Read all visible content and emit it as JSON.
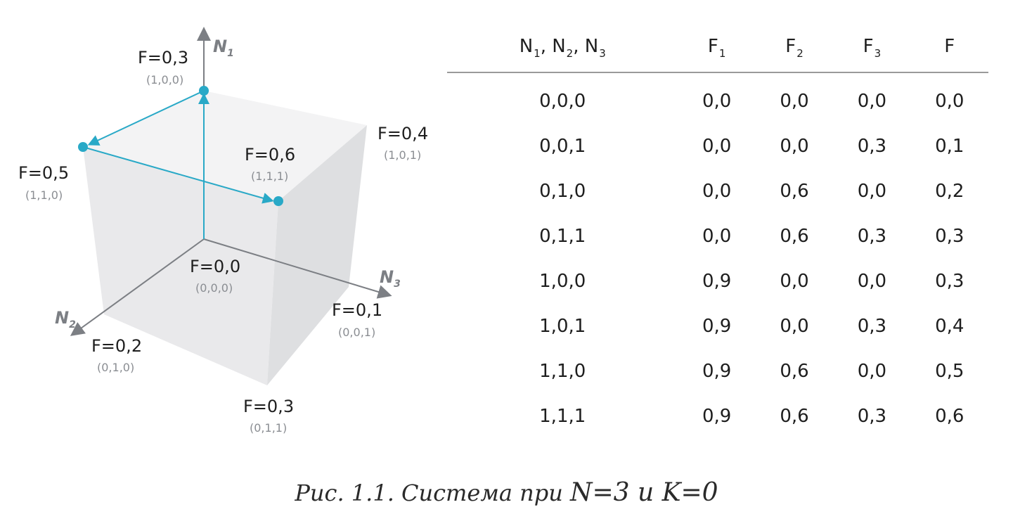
{
  "diagram": {
    "axes": {
      "n1": {
        "name": "N",
        "sub": "1"
      },
      "n2": {
        "name": "N",
        "sub": "2"
      },
      "n3": {
        "name": "N",
        "sub": "3"
      }
    },
    "vertices": {
      "v000": {
        "value": "F=0,0",
        "coords": "(0,0,0)"
      },
      "v001": {
        "value": "F=0,1",
        "coords": "(0,0,1)"
      },
      "v010": {
        "value": "F=0,2",
        "coords": "(0,1,0)"
      },
      "v011": {
        "value": "F=0,3",
        "coords": "(0,1,1)"
      },
      "v100": {
        "value": "F=0,3",
        "coords": "(1,0,0)"
      },
      "v101": {
        "value": "F=0,4",
        "coords": "(1,0,1)"
      },
      "v110": {
        "value": "F=0,5",
        "coords": "(1,1,0)"
      },
      "v111": {
        "value": "F=0,6",
        "coords": "(1,1,1)"
      }
    },
    "colors": {
      "path": "#29a9c7",
      "axis": "#7c7f84",
      "cube": "#e6e7e9"
    }
  },
  "table": {
    "headers": [
      {
        "parts": [
          {
            "t": "N",
            "s": "1"
          },
          {
            "t": ", N",
            "s": "2"
          },
          {
            "t": ", N",
            "s": "3"
          }
        ]
      },
      {
        "parts": [
          {
            "t": "F",
            "s": "1"
          }
        ]
      },
      {
        "parts": [
          {
            "t": "F",
            "s": "2"
          }
        ]
      },
      {
        "parts": [
          {
            "t": "F",
            "s": "3"
          }
        ]
      },
      {
        "parts": [
          {
            "t": "F",
            "s": ""
          }
        ]
      }
    ],
    "rows": [
      [
        "0,0,0",
        "0,0",
        "0,0",
        "0,0",
        "0,0"
      ],
      [
        "0,0,1",
        "0,0",
        "0,0",
        "0,3",
        "0,1"
      ],
      [
        "0,1,0",
        "0,0",
        "0,6",
        "0,0",
        "0,2"
      ],
      [
        "0,1,1",
        "0,0",
        "0,6",
        "0,3",
        "0,3"
      ],
      [
        "1,0,0",
        "0,9",
        "0,0",
        "0,0",
        "0,3"
      ],
      [
        "1,0,1",
        "0,9",
        "0,0",
        "0,3",
        "0,4"
      ],
      [
        "1,1,0",
        "0,9",
        "0,6",
        "0,0",
        "0,5"
      ],
      [
        "1,1,1",
        "0,9",
        "0,6",
        "0,3",
        "0,6"
      ]
    ]
  },
  "caption": {
    "text": "Рис. 1.1. Система при ",
    "formula": "N=3 и K=0"
  }
}
